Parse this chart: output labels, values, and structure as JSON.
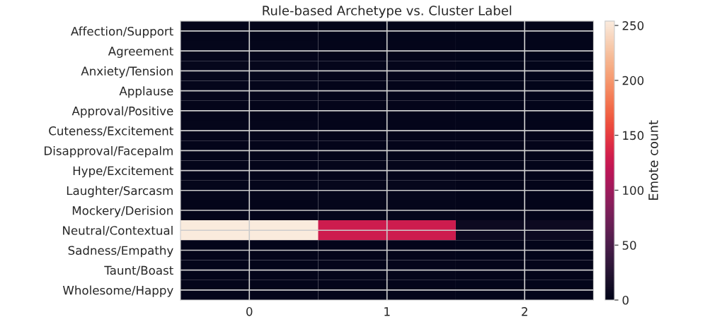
{
  "chart_data": {
    "type": "heatmap",
    "title": "Rule-based Archetype vs. Cluster Label",
    "clabel": "Emote count",
    "categories": [
      "0",
      "1",
      "2"
    ],
    "y_categories": [
      "Affection/Support",
      "Agreement",
      "Anxiety/Tension",
      "Applause",
      "Approval/Positive",
      "Cuteness/Excitement",
      "Disapproval/Facepalm",
      "Hype/Excitement",
      "Laughter/Sarcasm",
      "Mockery/Derision",
      "Neutral/Contextual",
      "Sadness/Empathy",
      "Taunt/Boast",
      "Wholesome/Happy"
    ],
    "cells": [
      [
        1,
        0,
        0
      ],
      [
        2,
        1,
        0
      ],
      [
        3,
        2,
        0
      ],
      [
        2,
        1,
        0
      ],
      [
        1,
        1,
        0
      ],
      [
        2,
        1,
        1
      ],
      [
        1,
        1,
        1
      ],
      [
        1,
        2,
        1
      ],
      [
        2,
        3,
        1
      ],
      [
        1,
        2,
        1
      ],
      [
        254,
        128,
        8
      ],
      [
        1,
        1,
        0
      ],
      [
        1,
        2,
        1
      ],
      [
        1,
        1,
        0
      ]
    ],
    "clim": [
      0,
      254
    ],
    "cticks": [
      0,
      50,
      100,
      150,
      200,
      250
    ],
    "grid": true
  }
}
